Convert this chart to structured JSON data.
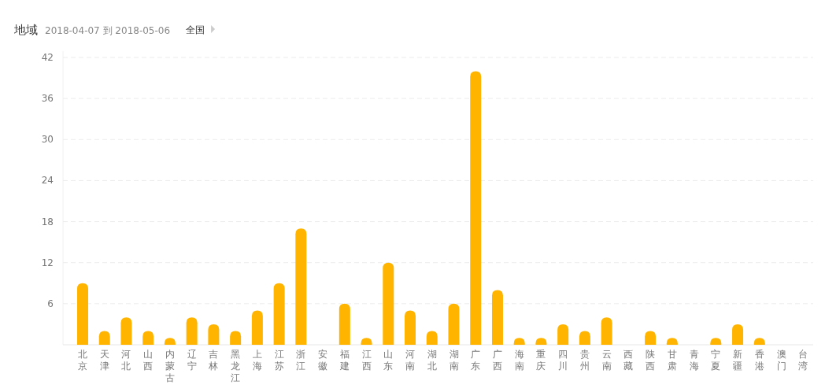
{
  "chart_data": {
    "type": "bar",
    "title": "地域",
    "subtitle": "2018-04-07 到 2018-05-06",
    "annotations": [
      "全国"
    ],
    "categories": [
      "北京",
      "天津",
      "河北",
      "山西",
      "内蒙古",
      "辽宁",
      "吉林",
      "黑龙江",
      "上海",
      "江苏",
      "浙江",
      "安徽",
      "福建",
      "江西",
      "山东",
      "河南",
      "湖北",
      "湖南",
      "广东",
      "广西",
      "海南",
      "重庆",
      "四川",
      "贵州",
      "云南",
      "西藏",
      "陕西",
      "甘肃",
      "青海",
      "宁夏",
      "新疆",
      "香港",
      "澳门",
      "台湾"
    ],
    "values": [
      9,
      2,
      4,
      2,
      1,
      4,
      3,
      2,
      5,
      9,
      17,
      0,
      6,
      1,
      12,
      5,
      2,
      6,
      40,
      8,
      1,
      1,
      3,
      2,
      4,
      0,
      2,
      1,
      0,
      1,
      3,
      1,
      0,
      0
    ],
    "color": "#ffb400",
    "ylim": [
      0,
      42
    ],
    "yticks": [
      {
        "value": 0,
        "label": null
      },
      6,
      12,
      18,
      24,
      30,
      36,
      42
    ],
    "grid": "y"
  }
}
